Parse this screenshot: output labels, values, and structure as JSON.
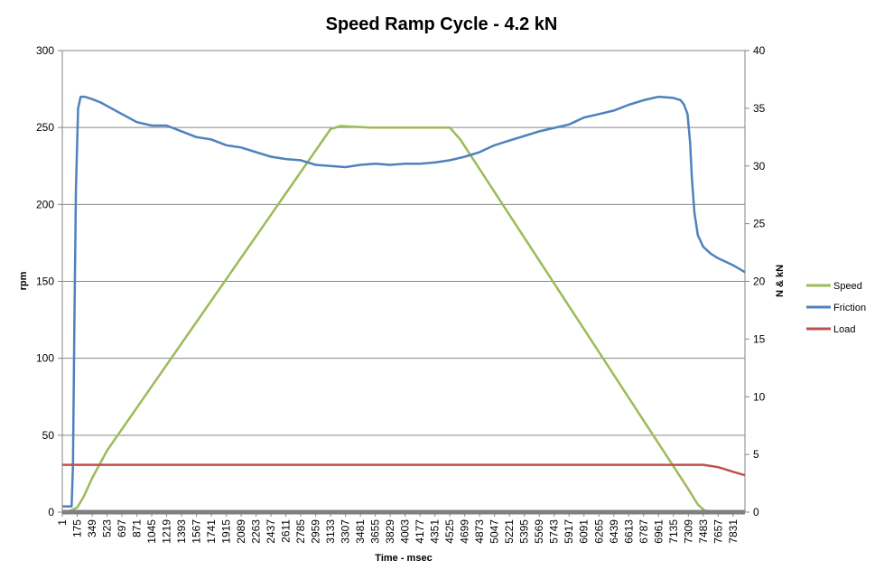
{
  "chart_data": {
    "type": "line",
    "title": "Speed Ramp Cycle - 4.2 kN",
    "xlabel": "Time - msec",
    "ylabel": "rpm",
    "y2label": "N & kN",
    "ylim": [
      0,
      300
    ],
    "y2lim": [
      0,
      40
    ],
    "yticks": [
      0,
      50,
      100,
      150,
      200,
      250,
      300
    ],
    "y2ticks": [
      0,
      5,
      10,
      15,
      20,
      25,
      30,
      35,
      40
    ],
    "xlim": [
      1,
      7970
    ],
    "xticks": [
      1,
      175,
      349,
      523,
      697,
      871,
      1045,
      1219,
      1393,
      1567,
      1741,
      1915,
      2089,
      2263,
      2437,
      2611,
      2785,
      2959,
      3133,
      3307,
      3481,
      3655,
      3829,
      4003,
      4177,
      4351,
      4525,
      4699,
      4873,
      5047,
      5221,
      5395,
      5569,
      5743,
      5917,
      6091,
      6265,
      6439,
      6613,
      6787,
      6961,
      7135,
      7309,
      7483,
      7657,
      7831
    ],
    "grid": "horizontal",
    "legend_position": "right",
    "series": [
      {
        "name": "Speed",
        "color": "#9BBB59",
        "axis": "left",
        "x": [
          1,
          100,
          175,
          250,
          349,
          523,
          3133,
          3250,
          3600,
          4525,
          4650,
          7309,
          7420,
          7500,
          7600,
          7831,
          7970
        ],
        "y": [
          0,
          1,
          3,
          10,
          22,
          40,
          249,
          251,
          250,
          250,
          242,
          15,
          5,
          1,
          0.5,
          0.5,
          0
        ]
      },
      {
        "name": "Friction",
        "color": "#4F81BD",
        "axis": "right",
        "x": [
          1,
          110,
          125,
          140,
          160,
          185,
          215,
          260,
          349,
          450,
          523,
          697,
          871,
          1045,
          1219,
          1393,
          1567,
          1741,
          1915,
          2089,
          2263,
          2437,
          2611,
          2785,
          2959,
          3133,
          3307,
          3481,
          3655,
          3829,
          4003,
          4177,
          4351,
          4525,
          4699,
          4873,
          5047,
          5221,
          5395,
          5569,
          5743,
          5917,
          6091,
          6265,
          6439,
          6613,
          6787,
          6961,
          7135,
          7220,
          7260,
          7300,
          7330,
          7350,
          7380,
          7420,
          7483,
          7570,
          7657,
          7744,
          7831,
          7970
        ],
        "y": [
          0.5,
          0.5,
          4,
          15,
          28,
          35,
          36,
          36,
          35.8,
          35.5,
          35.2,
          34.5,
          33.8,
          33.5,
          33.5,
          33,
          32.5,
          32.3,
          31.8,
          31.6,
          31.2,
          30.8,
          30.6,
          30.5,
          30.1,
          30,
          29.9,
          30.1,
          30.2,
          30.1,
          30.2,
          30.2,
          30.3,
          30.5,
          30.8,
          31.2,
          31.8,
          32.2,
          32.6,
          33,
          33.3,
          33.6,
          34.2,
          34.5,
          34.8,
          35.3,
          35.7,
          36,
          35.9,
          35.7,
          35.3,
          34.5,
          32,
          29,
          26,
          24,
          23,
          22.4,
          22,
          21.7,
          21.4,
          20.8
        ]
      },
      {
        "name": "Load",
        "color": "#C0504D",
        "axis": "right",
        "x": [
          1,
          7309,
          7483,
          7570,
          7657,
          7744,
          7831,
          7970
        ],
        "y": [
          4.1,
          4.1,
          4.1,
          4.0,
          3.9,
          3.7,
          3.5,
          3.2
        ]
      }
    ]
  }
}
